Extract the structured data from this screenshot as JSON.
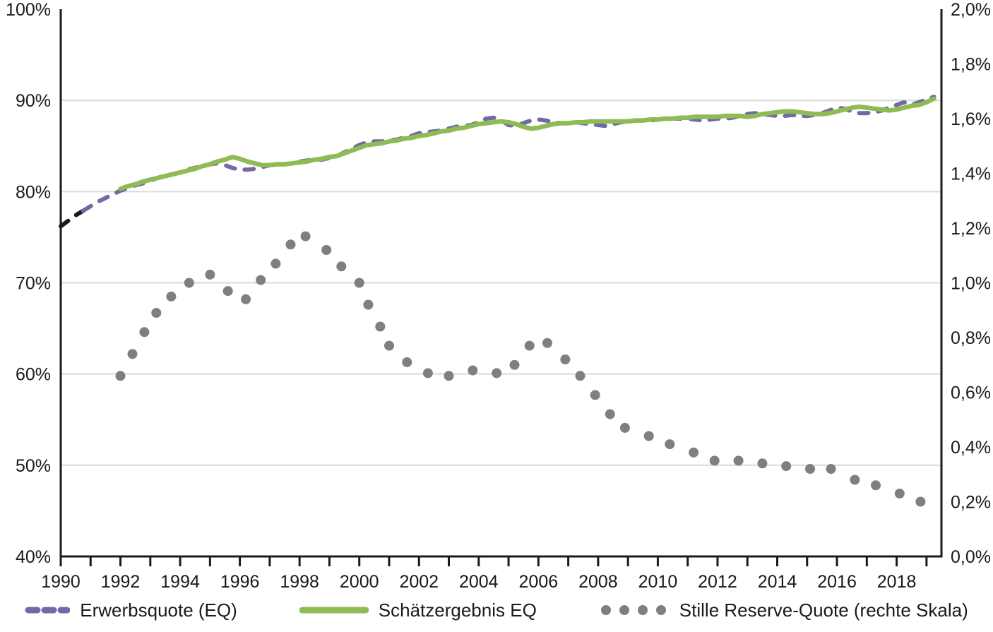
{
  "chart_data": {
    "type": "line",
    "title": "",
    "x_range": [
      1990,
      2019.5
    ],
    "x_tick_years": [
      1990,
      1991,
      1992,
      1993,
      1994,
      1995,
      1996,
      1997,
      1998,
      1999,
      2000,
      2001,
      2002,
      2003,
      2004,
      2005,
      2006,
      2007,
      2008,
      2009,
      2010,
      2011,
      2012,
      2013,
      2014,
      2015,
      2016,
      2017,
      2018,
      2019
    ],
    "x_label_years": [
      "1990",
      "1992",
      "1994",
      "1996",
      "1998",
      "2000",
      "2002",
      "2004",
      "2006",
      "2008",
      "2010",
      "2012",
      "2014",
      "2016",
      "2018"
    ],
    "left_axis": {
      "range": [
        40,
        100
      ],
      "tick_step": 10,
      "ticks": [
        "100%",
        "90%",
        "80%",
        "70%",
        "60%",
        "50%",
        "40%"
      ],
      "gridline_values": [
        50,
        60,
        70,
        80,
        90
      ]
    },
    "right_axis": {
      "range": [
        0,
        2
      ],
      "tick_step": 0.2,
      "ticks": [
        "2,0%",
        "1,8%",
        "1,6%",
        "1,4%",
        "1,2%",
        "1,0%",
        "0,8%",
        "0,6%",
        "0,4%",
        "0,2%",
        "0,0%"
      ]
    },
    "legend_position": "bottom",
    "grid": "horizontal-only",
    "series": [
      {
        "name": "Erwerbsquote (EQ)",
        "style": "dashed",
        "axis": "left",
        "color": "#7369a5",
        "pre_color": "#1a1a1a",
        "pre_until": 1991.05,
        "points": [
          [
            1990.0,
            76.2
          ],
          [
            1990.25,
            76.8
          ],
          [
            1990.5,
            77.4
          ],
          [
            1990.75,
            77.9
          ],
          [
            1991.0,
            78.4
          ],
          [
            1991.25,
            78.9
          ],
          [
            1991.5,
            79.3
          ],
          [
            1991.75,
            79.7
          ],
          [
            1992.0,
            80.1
          ],
          [
            1992.25,
            80.4
          ],
          [
            1992.5,
            80.7
          ],
          [
            1992.75,
            80.9
          ],
          [
            1993.0,
            81.2
          ],
          [
            1993.25,
            81.5
          ],
          [
            1993.5,
            81.8
          ],
          [
            1993.75,
            81.9
          ],
          [
            1994.0,
            82.1
          ],
          [
            1994.25,
            82.4
          ],
          [
            1994.5,
            82.6
          ],
          [
            1994.75,
            82.8
          ],
          [
            1995.0,
            83.0
          ],
          [
            1995.25,
            83.1
          ],
          [
            1995.5,
            82.9
          ],
          [
            1995.75,
            82.6
          ],
          [
            1996.0,
            82.4
          ],
          [
            1996.25,
            82.4
          ],
          [
            1996.5,
            82.5
          ],
          [
            1996.75,
            82.7
          ],
          [
            1997.0,
            82.9
          ],
          [
            1997.25,
            83.0
          ],
          [
            1997.5,
            83.0
          ],
          [
            1997.75,
            83.1
          ],
          [
            1998.0,
            83.3
          ],
          [
            1998.25,
            83.4
          ],
          [
            1998.5,
            83.5
          ],
          [
            1998.75,
            83.5
          ],
          [
            1999.0,
            83.7
          ],
          [
            1999.25,
            83.9
          ],
          [
            1999.5,
            84.3
          ],
          [
            1999.75,
            84.7
          ],
          [
            2000.0,
            85.1
          ],
          [
            2000.25,
            85.4
          ],
          [
            2000.5,
            85.5
          ],
          [
            2000.75,
            85.5
          ],
          [
            2001.0,
            85.6
          ],
          [
            2001.25,
            85.7
          ],
          [
            2001.5,
            85.9
          ],
          [
            2001.75,
            86.1
          ],
          [
            2002.0,
            86.4
          ],
          [
            2002.25,
            86.5
          ],
          [
            2002.5,
            86.6
          ],
          [
            2002.75,
            86.7
          ],
          [
            2003.0,
            86.9
          ],
          [
            2003.25,
            87.1
          ],
          [
            2003.5,
            87.2
          ],
          [
            2003.75,
            87.3
          ],
          [
            2004.0,
            87.6
          ],
          [
            2004.25,
            88.0
          ],
          [
            2004.5,
            88.1
          ],
          [
            2004.75,
            87.8
          ],
          [
            2005.0,
            87.3
          ],
          [
            2005.25,
            87.2
          ],
          [
            2005.5,
            87.5
          ],
          [
            2005.75,
            87.8
          ],
          [
            2006.0,
            87.9
          ],
          [
            2006.25,
            87.8
          ],
          [
            2006.5,
            87.6
          ],
          [
            2006.75,
            87.5
          ],
          [
            2007.0,
            87.5
          ],
          [
            2007.25,
            87.6
          ],
          [
            2007.5,
            87.5
          ],
          [
            2007.75,
            87.4
          ],
          [
            2008.0,
            87.3
          ],
          [
            2008.25,
            87.2
          ],
          [
            2008.5,
            87.4
          ],
          [
            2008.75,
            87.6
          ],
          [
            2009.0,
            87.7
          ],
          [
            2009.25,
            87.8
          ],
          [
            2009.5,
            87.8
          ],
          [
            2009.75,
            87.8
          ],
          [
            2010.0,
            87.9
          ],
          [
            2010.25,
            88.0
          ],
          [
            2010.5,
            88.0
          ],
          [
            2010.75,
            88.0
          ],
          [
            2011.0,
            88.0
          ],
          [
            2011.25,
            87.9
          ],
          [
            2011.5,
            87.8
          ],
          [
            2011.75,
            87.9
          ],
          [
            2012.0,
            88.0
          ],
          [
            2012.25,
            88.0
          ],
          [
            2012.5,
            88.1
          ],
          [
            2012.75,
            88.3
          ],
          [
            2013.0,
            88.5
          ],
          [
            2013.25,
            88.6
          ],
          [
            2013.5,
            88.5
          ],
          [
            2013.75,
            88.4
          ],
          [
            2014.0,
            88.3
          ],
          [
            2014.25,
            88.3
          ],
          [
            2014.5,
            88.4
          ],
          [
            2014.75,
            88.3
          ],
          [
            2015.0,
            88.3
          ],
          [
            2015.25,
            88.4
          ],
          [
            2015.5,
            88.6
          ],
          [
            2015.75,
            88.9
          ],
          [
            2016.0,
            89.2
          ],
          [
            2016.25,
            89.1
          ],
          [
            2016.5,
            88.8
          ],
          [
            2016.75,
            88.6
          ],
          [
            2017.0,
            88.6
          ],
          [
            2017.25,
            88.7
          ],
          [
            2017.5,
            88.9
          ],
          [
            2017.75,
            89.2
          ],
          [
            2018.0,
            89.5
          ],
          [
            2018.25,
            89.8
          ],
          [
            2018.5,
            89.5
          ],
          [
            2018.75,
            89.8
          ],
          [
            2019.0,
            90.1
          ],
          [
            2019.25,
            90.4
          ]
        ]
      },
      {
        "name": "Schätzergebnis EQ",
        "style": "solid",
        "axis": "left",
        "color": "#8fba54",
        "points": [
          [
            1992.0,
            80.3
          ],
          [
            1992.25,
            80.6
          ],
          [
            1992.5,
            80.8
          ],
          [
            1992.75,
            81.1
          ],
          [
            1993.0,
            81.3
          ],
          [
            1993.25,
            81.5
          ],
          [
            1993.5,
            81.7
          ],
          [
            1993.75,
            81.9
          ],
          [
            1994.0,
            82.1
          ],
          [
            1994.25,
            82.3
          ],
          [
            1994.5,
            82.5
          ],
          [
            1994.75,
            82.8
          ],
          [
            1995.0,
            83.0
          ],
          [
            1995.25,
            83.3
          ],
          [
            1995.5,
            83.5
          ],
          [
            1995.75,
            83.8
          ],
          [
            1996.0,
            83.6
          ],
          [
            1996.25,
            83.3
          ],
          [
            1996.5,
            83.1
          ],
          [
            1996.75,
            82.9
          ],
          [
            1997.0,
            82.9
          ],
          [
            1997.25,
            83.0
          ],
          [
            1997.5,
            83.0
          ],
          [
            1997.75,
            83.1
          ],
          [
            1998.0,
            83.2
          ],
          [
            1998.25,
            83.3
          ],
          [
            1998.5,
            83.5
          ],
          [
            1998.75,
            83.6
          ],
          [
            1999.0,
            83.8
          ],
          [
            1999.25,
            83.9
          ],
          [
            1999.5,
            84.2
          ],
          [
            1999.75,
            84.5
          ],
          [
            2000.0,
            84.8
          ],
          [
            2000.25,
            85.1
          ],
          [
            2000.5,
            85.2
          ],
          [
            2000.75,
            85.3
          ],
          [
            2001.0,
            85.5
          ],
          [
            2001.25,
            85.6
          ],
          [
            2001.5,
            85.8
          ],
          [
            2001.75,
            85.9
          ],
          [
            2002.0,
            86.1
          ],
          [
            2002.25,
            86.2
          ],
          [
            2002.5,
            86.4
          ],
          [
            2002.75,
            86.6
          ],
          [
            2003.0,
            86.7
          ],
          [
            2003.25,
            86.9
          ],
          [
            2003.5,
            87.0
          ],
          [
            2003.75,
            87.2
          ],
          [
            2004.0,
            87.4
          ],
          [
            2004.25,
            87.5
          ],
          [
            2004.5,
            87.6
          ],
          [
            2004.75,
            87.7
          ],
          [
            2005.0,
            87.6
          ],
          [
            2005.25,
            87.4
          ],
          [
            2005.5,
            87.1
          ],
          [
            2005.75,
            86.9
          ],
          [
            2006.0,
            87.0
          ],
          [
            2006.25,
            87.2
          ],
          [
            2006.5,
            87.4
          ],
          [
            2006.75,
            87.5
          ],
          [
            2007.0,
            87.5
          ],
          [
            2007.25,
            87.6
          ],
          [
            2007.5,
            87.6
          ],
          [
            2007.75,
            87.7
          ],
          [
            2008.0,
            87.7
          ],
          [
            2008.25,
            87.7
          ],
          [
            2008.5,
            87.7
          ],
          [
            2008.75,
            87.7
          ],
          [
            2009.0,
            87.7
          ],
          [
            2009.25,
            87.8
          ],
          [
            2009.5,
            87.8
          ],
          [
            2009.75,
            87.9
          ],
          [
            2010.0,
            87.9
          ],
          [
            2010.25,
            88.0
          ],
          [
            2010.5,
            88.0
          ],
          [
            2010.75,
            88.1
          ],
          [
            2011.0,
            88.1
          ],
          [
            2011.25,
            88.2
          ],
          [
            2011.5,
            88.2
          ],
          [
            2011.75,
            88.2
          ],
          [
            2012.0,
            88.2
          ],
          [
            2012.25,
            88.3
          ],
          [
            2012.5,
            88.3
          ],
          [
            2012.75,
            88.3
          ],
          [
            2013.0,
            88.2
          ],
          [
            2013.25,
            88.3
          ],
          [
            2013.5,
            88.5
          ],
          [
            2013.75,
            88.6
          ],
          [
            2014.0,
            88.7
          ],
          [
            2014.25,
            88.8
          ],
          [
            2014.5,
            88.8
          ],
          [
            2014.75,
            88.7
          ],
          [
            2015.0,
            88.6
          ],
          [
            2015.25,
            88.5
          ],
          [
            2015.5,
            88.5
          ],
          [
            2015.75,
            88.6
          ],
          [
            2016.0,
            88.8
          ],
          [
            2016.25,
            89.0
          ],
          [
            2016.5,
            89.2
          ],
          [
            2016.75,
            89.3
          ],
          [
            2017.0,
            89.2
          ],
          [
            2017.25,
            89.1
          ],
          [
            2017.5,
            89.0
          ],
          [
            2017.75,
            88.9
          ],
          [
            2018.0,
            89.0
          ],
          [
            2018.25,
            89.2
          ],
          [
            2018.5,
            89.4
          ],
          [
            2018.75,
            89.5
          ],
          [
            2019.0,
            89.8
          ],
          [
            2019.25,
            90.2
          ]
        ]
      },
      {
        "name": "Stille Reserve-Quote (rechte Skala)",
        "style": "dots",
        "axis": "right",
        "color": "#7f7f7f",
        "dot_radius": 7,
        "points": [
          [
            1992.0,
            0.66
          ],
          [
            1992.4,
            0.74
          ],
          [
            1992.8,
            0.82
          ],
          [
            1993.2,
            0.89
          ],
          [
            1993.7,
            0.95
          ],
          [
            1994.3,
            1.0
          ],
          [
            1995.0,
            1.03
          ],
          [
            1995.6,
            0.97
          ],
          [
            1996.2,
            0.94
          ],
          [
            1996.7,
            1.01
          ],
          [
            1997.2,
            1.07
          ],
          [
            1997.7,
            1.14
          ],
          [
            1998.2,
            1.17
          ],
          [
            1998.9,
            1.12
          ],
          [
            1999.4,
            1.06
          ],
          [
            2000.0,
            1.0
          ],
          [
            2000.3,
            0.92
          ],
          [
            2000.7,
            0.84
          ],
          [
            2001.0,
            0.77
          ],
          [
            2001.6,
            0.71
          ],
          [
            2002.3,
            0.67
          ],
          [
            2003.0,
            0.66
          ],
          [
            2003.8,
            0.68
          ],
          [
            2004.6,
            0.67
          ],
          [
            2005.2,
            0.7
          ],
          [
            2005.7,
            0.77
          ],
          [
            2006.3,
            0.78
          ],
          [
            2006.9,
            0.72
          ],
          [
            2007.4,
            0.66
          ],
          [
            2007.9,
            0.59
          ],
          [
            2008.4,
            0.52
          ],
          [
            2008.9,
            0.47
          ],
          [
            2009.7,
            0.44
          ],
          [
            2010.4,
            0.41
          ],
          [
            2011.2,
            0.38
          ],
          [
            2011.9,
            0.35
          ],
          [
            2012.7,
            0.35
          ],
          [
            2013.5,
            0.34
          ],
          [
            2014.3,
            0.33
          ],
          [
            2015.1,
            0.32
          ],
          [
            2015.8,
            0.32
          ],
          [
            2016.6,
            0.28
          ],
          [
            2017.3,
            0.26
          ],
          [
            2018.1,
            0.23
          ],
          [
            2018.8,
            0.2
          ]
        ]
      }
    ]
  },
  "legend": {
    "items": [
      {
        "label": "Erwerbsquote (EQ)",
        "swatch": "dashed-purple-line"
      },
      {
        "label": "Schätzergebnis EQ",
        "swatch": "solid-green-line"
      },
      {
        "label": "Stille Reserve-Quote (rechte Skala)",
        "swatch": "gray-dots"
      }
    ]
  },
  "colors": {
    "erwerbsquote": "#7369a5",
    "erwerbsquote_pre1991": "#1a1a1a",
    "schaetzergebnis": "#8fba54",
    "stille_reserve": "#7f7f7f",
    "axis": "#1a1a1a",
    "gridline": "#d9d9d9",
    "text": "#1a1a1a",
    "background": "#ffffff"
  }
}
